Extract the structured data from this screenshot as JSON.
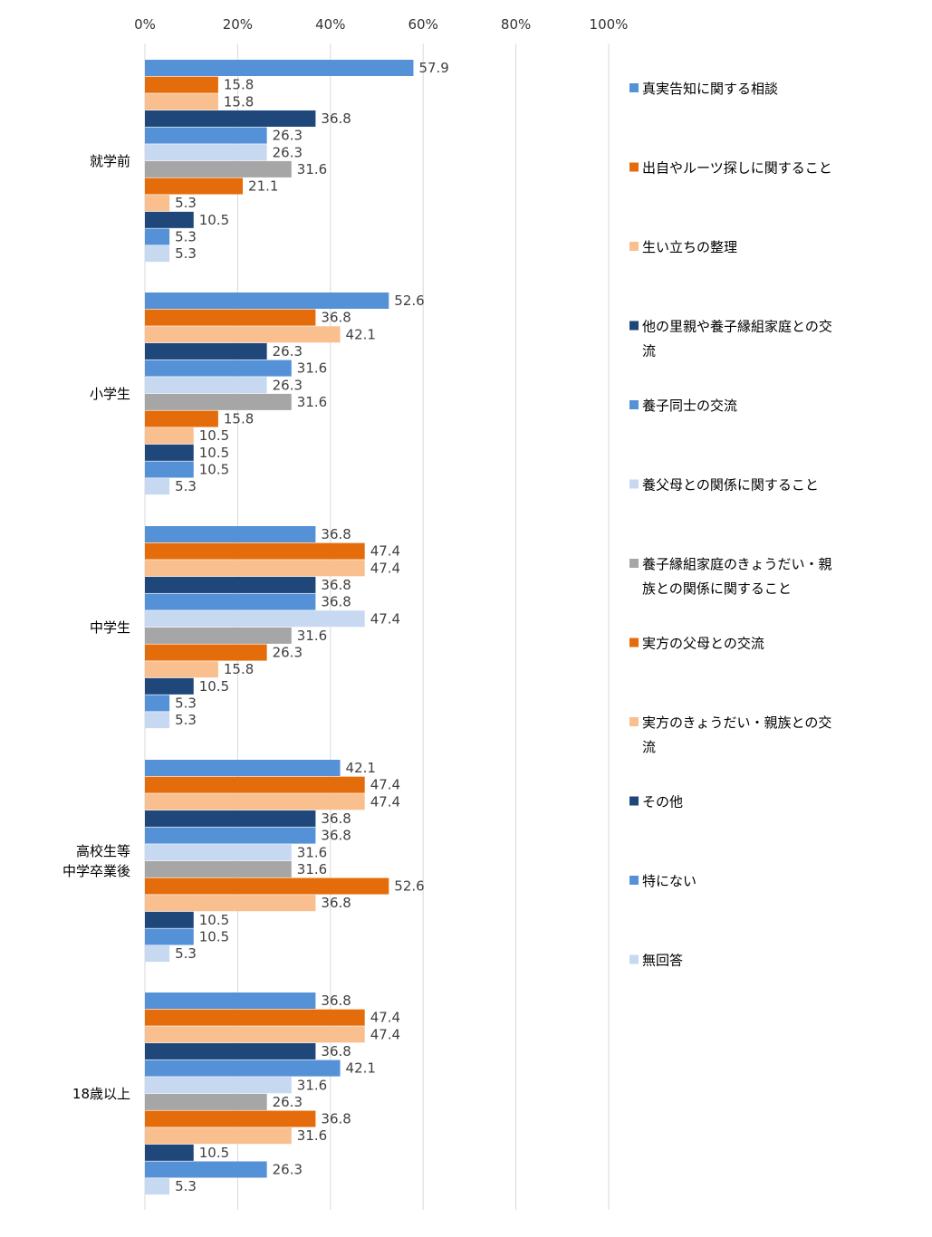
{
  "chart_data": {
    "type": "bar",
    "orientation": "horizontal",
    "title": "",
    "xlabel": "",
    "ylabel": "",
    "xlim": [
      0,
      100
    ],
    "x_ticks": [
      "0%",
      "20%",
      "40%",
      "60%",
      "80%",
      "100%"
    ],
    "x_tick_values": [
      0,
      20,
      40,
      60,
      80,
      100
    ],
    "grid": true,
    "legend_position": "right",
    "categories": [
      [
        "就学前"
      ],
      [
        "小学生"
      ],
      [
        "中学生"
      ],
      [
        "高校生等",
        "中学卒業後"
      ],
      [
        "18歳以上"
      ]
    ],
    "series": [
      {
        "name": "真実告知に関する相談",
        "name_lines": [
          "真実告知に関する相談"
        ],
        "color": "#5591D7",
        "values": [
          57.9,
          52.6,
          36.8,
          42.1,
          36.8
        ]
      },
      {
        "name": "出自やルーツ探しに関すること",
        "name_lines": [
          "出自やルーツ探しに関すること"
        ],
        "color": "#E46C0A",
        "values": [
          15.8,
          36.8,
          47.4,
          47.4,
          47.4
        ]
      },
      {
        "name": "生い立ちの整理",
        "name_lines": [
          "生い立ちの整理"
        ],
        "color": "#F9BF8F",
        "values": [
          15.8,
          42.1,
          47.4,
          47.4,
          47.4
        ]
      },
      {
        "name": "他の里親や養子縁組家庭との交流",
        "name_lines": [
          "他の里親や養子縁組家庭との交",
          "流"
        ],
        "color": "#1F477A",
        "values": [
          36.8,
          26.3,
          36.8,
          36.8,
          36.8
        ]
      },
      {
        "name": "養子同士の交流",
        "name_lines": [
          "養子同士の交流"
        ],
        "color": "#5591D7",
        "values": [
          26.3,
          31.6,
          36.8,
          36.8,
          42.1
        ]
      },
      {
        "name": "養父母との関係に関すること",
        "name_lines": [
          "養父母との関係に関すること"
        ],
        "color": "#C6D9F1",
        "values": [
          26.3,
          26.3,
          47.4,
          31.6,
          31.6
        ]
      },
      {
        "name": "養子縁組家庭のきょうだい・親族との関係に関すること",
        "name_lines": [
          "養子縁組家庭のきょうだい・親",
          "族との関係に関すること"
        ],
        "color": "#A6A6A6",
        "values": [
          31.6,
          31.6,
          31.6,
          31.6,
          26.3
        ]
      },
      {
        "name": "実方の父母との交流",
        "name_lines": [
          "実方の父母との交流"
        ],
        "color": "#E46C0A",
        "values": [
          21.1,
          15.8,
          26.3,
          52.6,
          36.8
        ]
      },
      {
        "name": "実方のきょうだい・親族との交流",
        "name_lines": [
          "実方のきょうだい・親族との交",
          "流"
        ],
        "color": "#F9BF8F",
        "values": [
          5.3,
          10.5,
          15.8,
          36.8,
          31.6
        ]
      },
      {
        "name": "その他",
        "name_lines": [
          "その他"
        ],
        "color": "#1F477A",
        "values": [
          10.5,
          10.5,
          10.5,
          10.5,
          10.5
        ]
      },
      {
        "name": "特にない",
        "name_lines": [
          "特にない"
        ],
        "color": "#5591D7",
        "values": [
          5.3,
          10.5,
          5.3,
          10.5,
          26.3
        ]
      },
      {
        "name": "無回答",
        "name_lines": [
          "無回答"
        ],
        "color": "#C6D9F1",
        "values": [
          5.3,
          5.3,
          5.3,
          5.3,
          5.3
        ]
      }
    ],
    "value_labels": [
      [
        "57.9",
        "15.8",
        "15.8",
        "36.8",
        "26.3",
        "26.3",
        "31.6",
        "21.1",
        "5.3",
        "10.5",
        "5.3",
        "5.3"
      ],
      [
        "52.6",
        "36.8",
        "42.1",
        "26.3",
        "31.6",
        "26.3",
        "31.6",
        "15.8",
        "10.5",
        "10.5",
        "10.5",
        "5.3"
      ],
      [
        "36.8",
        "47.4",
        "47.4",
        "36.8",
        "36.8",
        "47.4",
        "31.6",
        "26.3",
        "15.8",
        "10.5",
        "5.3",
        "5.3"
      ],
      [
        "42.1",
        "47.4",
        "47.4",
        "36.8",
        "36.8",
        "31.6",
        "31.6",
        "52.6",
        "36.8",
        "10.5",
        "10.5",
        "5.3"
      ],
      [
        "36.8",
        "47.4",
        "47.4",
        "36.8",
        "42.1",
        "31.6",
        "26.3",
        "36.8",
        "31.6",
        "10.5",
        "26.3",
        "5.3"
      ]
    ]
  }
}
